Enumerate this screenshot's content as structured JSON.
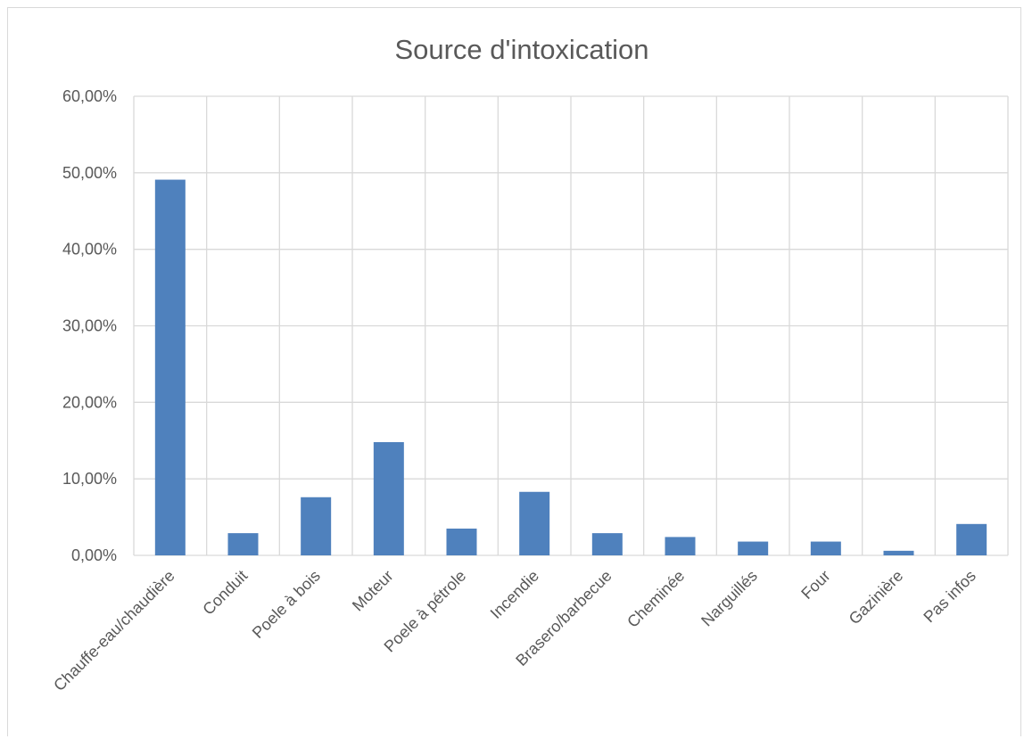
{
  "chart_data": {
    "type": "bar",
    "title": "Source d'intoxication",
    "xlabel": "",
    "ylabel": "",
    "categories": [
      "Chauffe-eau/chaudière",
      "Conduit",
      "Poele à bois",
      "Moteur",
      "Poele à pétrole",
      "Incendie",
      "Brasero/barbecue",
      "Cheminée",
      "Narguillés",
      "Four",
      "Gazinière",
      "Pas infos"
    ],
    "values": [
      49.1,
      2.9,
      7.6,
      14.8,
      3.5,
      8.3,
      2.9,
      2.4,
      1.8,
      1.8,
      0.6,
      4.1
    ],
    "ylim": [
      0,
      60
    ],
    "yticks": [
      0,
      10,
      20,
      30,
      40,
      50,
      60
    ],
    "ytick_labels": [
      "0,00%",
      "10,00%",
      "20,00%",
      "30,00%",
      "40,00%",
      "50,00%",
      "60,00%"
    ],
    "grid": true,
    "legend": "none",
    "bar_color": "#4f81bd",
    "grid_color": "#d9d9d9"
  }
}
